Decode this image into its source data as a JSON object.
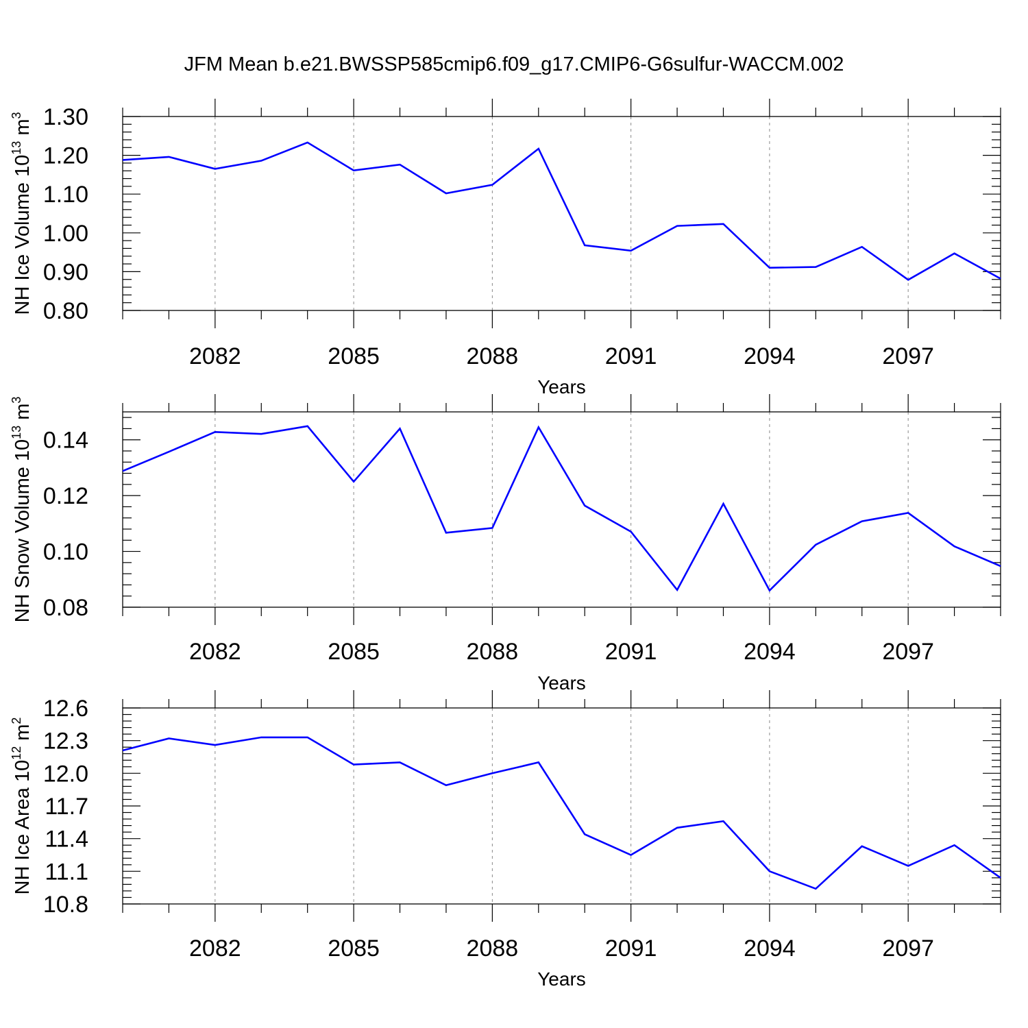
{
  "figure": {
    "title": "JFM Mean b.e21.BWSSP585cmip6.f09_g17.CMIP6-G6sulfur-WACCM.002",
    "series_color": "#0000ff",
    "grid_color": "#888888"
  },
  "chart_data": [
    {
      "type": "line",
      "ylabel": "NH Ice Volume 10",
      "ylabel_sup": "13",
      "ylabel_unit": "m",
      "ylabel_unit_sup": "3",
      "xlabel": "Years",
      "xlim": [
        2080,
        2099
      ],
      "ylim": [
        0.8,
        1.3
      ],
      "yticks": [
        "0.80",
        "0.90",
        "1.00",
        "1.10",
        "1.20",
        "1.30"
      ],
      "ytick_values": [
        0.8,
        0.9,
        1.0,
        1.1,
        1.2,
        1.3
      ],
      "xticks": [
        "2082",
        "2085",
        "2088",
        "2091",
        "2094",
        "2097"
      ],
      "xtick_values": [
        2082,
        2085,
        2088,
        2091,
        2094,
        2097
      ],
      "x": [
        2080,
        2081,
        2082,
        2083,
        2084,
        2085,
        2086,
        2087,
        2088,
        2089,
        2090,
        2091,
        2092,
        2093,
        2094,
        2095,
        2096,
        2097,
        2098,
        2099
      ],
      "y": [
        1.188,
        1.196,
        1.165,
        1.186,
        1.233,
        1.161,
        1.176,
        1.102,
        1.124,
        1.217,
        0.968,
        0.954,
        1.018,
        1.023,
        0.91,
        0.912,
        0.964,
        0.879,
        0.947,
        0.882
      ]
    },
    {
      "type": "line",
      "ylabel": "NH Snow Volume 10",
      "ylabel_sup": "13",
      "ylabel_unit": "m",
      "ylabel_unit_sup": "3",
      "xlabel": "Years",
      "xlim": [
        2080,
        2099
      ],
      "ylim": [
        0.08,
        0.15
      ],
      "yticks": [
        "0.08",
        "0.10",
        "0.12",
        "0.14"
      ],
      "ytick_values": [
        0.08,
        0.1,
        0.12,
        0.14
      ],
      "xticks": [
        "2082",
        "2085",
        "2088",
        "2091",
        "2094",
        "2097"
      ],
      "xtick_values": [
        2082,
        2085,
        2088,
        2091,
        2094,
        2097
      ],
      "x": [
        2080,
        2081,
        2082,
        2083,
        2084,
        2085,
        2086,
        2087,
        2088,
        2089,
        2090,
        2091,
        2092,
        2093,
        2094,
        2095,
        2096,
        2097,
        2098,
        2099
      ],
      "y": [
        0.1288,
        0.1357,
        0.1428,
        0.1421,
        0.1449,
        0.125,
        0.144,
        0.1067,
        0.1084,
        0.1445,
        0.1164,
        0.1071,
        0.0862,
        0.1171,
        0.086,
        0.1024,
        0.1108,
        0.1138,
        0.1018,
        0.0947
      ]
    },
    {
      "type": "line",
      "ylabel": "NH Ice Area 10",
      "ylabel_sup": "12",
      "ylabel_unit": "m",
      "ylabel_unit_sup": "2",
      "xlabel": "Years",
      "xlim": [
        2080,
        2099
      ],
      "ylim": [
        10.8,
        12.6
      ],
      "yticks": [
        "10.8",
        "11.1",
        "11.4",
        "11.7",
        "12.0",
        "12.3",
        "12.6"
      ],
      "ytick_values": [
        10.8,
        11.1,
        11.4,
        11.7,
        12.0,
        12.3,
        12.6
      ],
      "xticks": [
        "2082",
        "2085",
        "2088",
        "2091",
        "2094",
        "2097"
      ],
      "xtick_values": [
        2082,
        2085,
        2088,
        2091,
        2094,
        2097
      ],
      "x": [
        2080,
        2081,
        2082,
        2083,
        2084,
        2085,
        2086,
        2087,
        2088,
        2089,
        2090,
        2091,
        2092,
        2093,
        2094,
        2095,
        2096,
        2097,
        2098,
        2099
      ],
      "y": [
        12.21,
        12.32,
        12.26,
        12.33,
        12.33,
        12.08,
        12.1,
        11.89,
        12.0,
        12.1,
        11.44,
        11.25,
        11.5,
        11.56,
        11.1,
        10.94,
        11.33,
        11.15,
        11.34,
        11.04
      ]
    }
  ]
}
